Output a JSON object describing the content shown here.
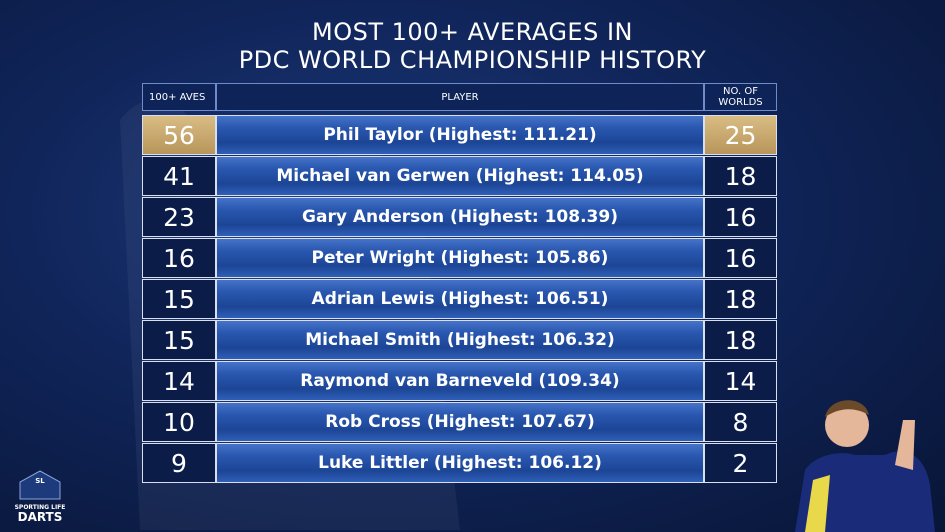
{
  "title": [
    "MOST 100+ AVERAGES IN",
    "PDC WORLD CHAMPIONSHIP HISTORY"
  ],
  "table": {
    "header": [
      "100+ AVES",
      "PLAYER",
      "NO. OF WORLDS"
    ],
    "rows": [
      [
        56,
        "Phil Taylor (Highest: 111.21)",
        25
      ],
      [
        41,
        "Michael van Gerwen (Highest: 114.05)",
        18
      ],
      [
        23,
        "Gary Anderson (Highest: 108.39)",
        16
      ],
      [
        16,
        "Peter Wright (Highest: 105.86)",
        16
      ],
      [
        15,
        "Adrian Lewis (Highest: 106.51)",
        18
      ],
      [
        15,
        "Michael Smith (Highest: 106.32)",
        18
      ],
      [
        14,
        "Raymond van Barneveld (109.34)",
        14
      ],
      [
        10,
        "Rob Cross (Highest: 107.67)",
        8
      ],
      [
        9,
        "Luke Littler (Highest: 106.12)",
        2
      ]
    ]
  },
  "logo": {
    "badge": "SL",
    "line1": "SPORTING LIFE",
    "line2": "DARTS"
  }
}
